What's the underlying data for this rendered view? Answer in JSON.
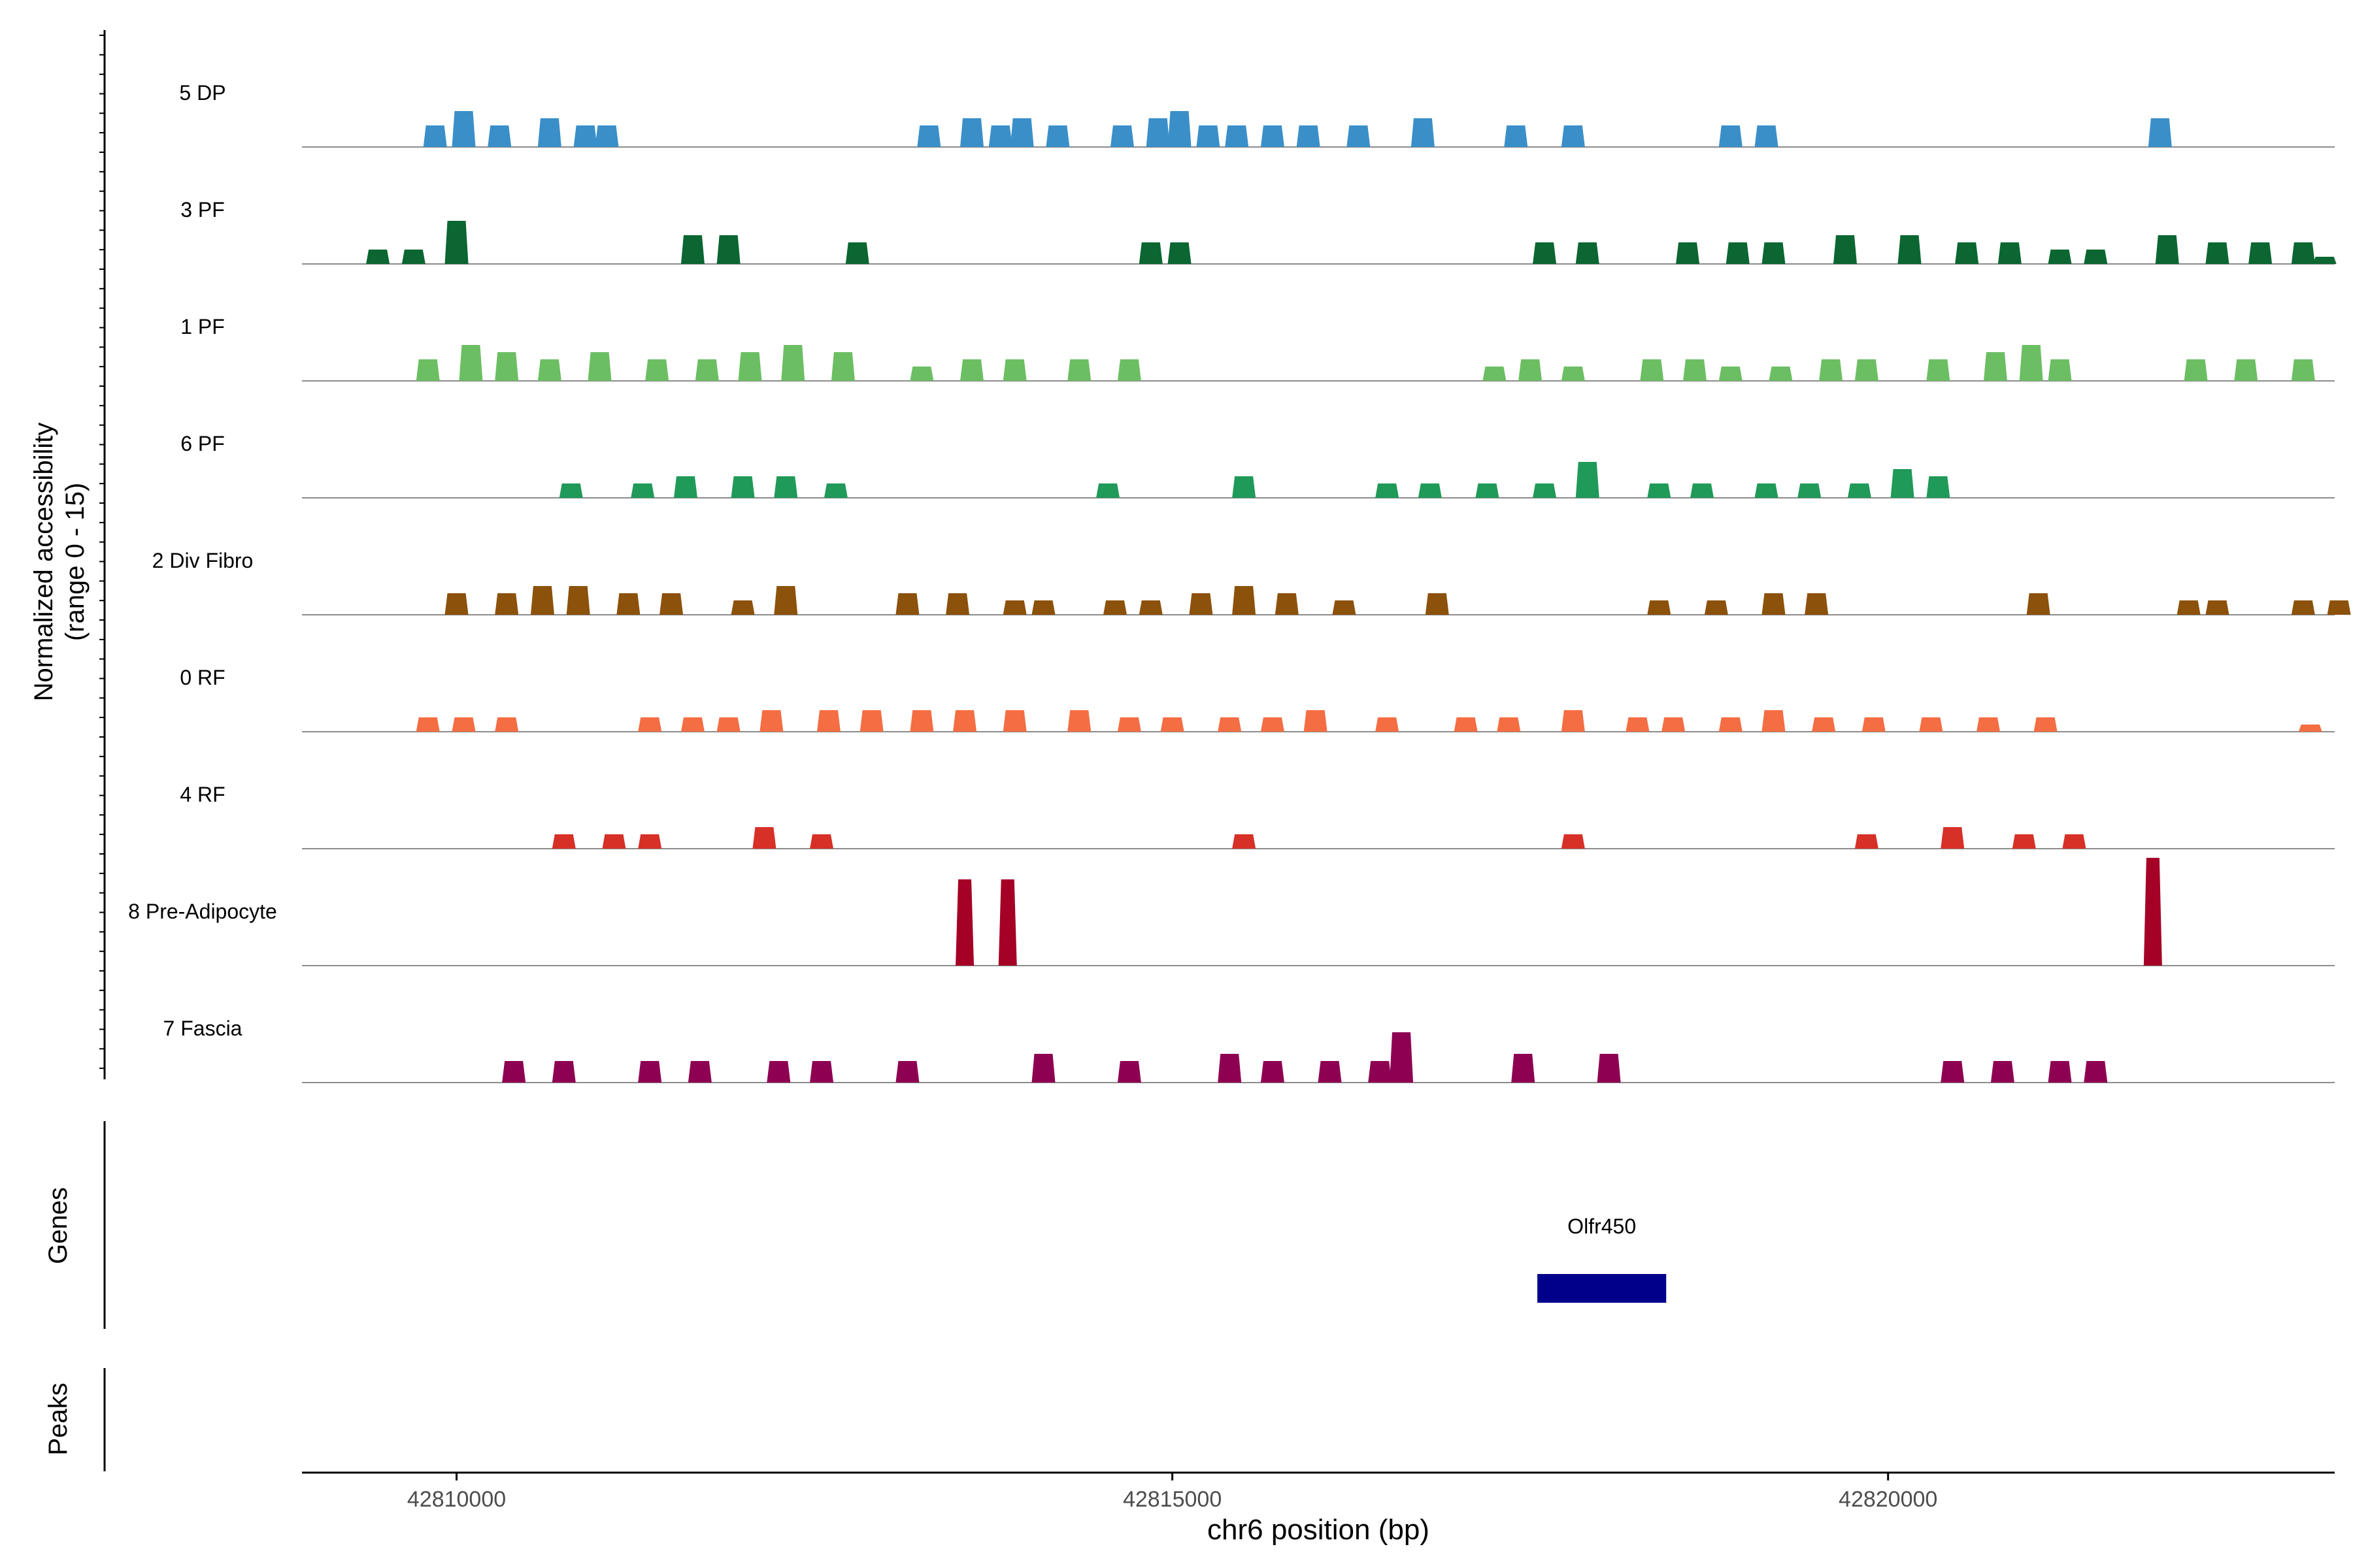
{
  "figure": {
    "yaxis_title_line1": "Normalized accessibility",
    "yaxis_title_line2": "(range 0 - 15)",
    "genes_label": "Genes",
    "peaks_label": "Peaks",
    "xlabel": "chr6 position (bp)"
  },
  "chart_data": {
    "type": "area",
    "xlabel": "chr6 position (bp)",
    "ylabel": "Normalized accessibility (range 0 - 15)",
    "xlim": [
      42808920,
      42823120
    ],
    "ylim": [
      0,
      15
    ],
    "xticks": [
      {
        "value": 42810000,
        "label": "42810000"
      },
      {
        "value": 42815000,
        "label": "42815000"
      },
      {
        "value": 42820000,
        "label": "42820000"
      }
    ],
    "series": [
      {
        "name": "5 DP",
        "color": "#3a8fc9",
        "peaks": [
          [
            42809850,
            3
          ],
          [
            42810050,
            5
          ],
          [
            42810300,
            3
          ],
          [
            42810650,
            4
          ],
          [
            42810900,
            3
          ],
          [
            42811050,
            3
          ],
          [
            42813300,
            3
          ],
          [
            42813600,
            4
          ],
          [
            42813800,
            3
          ],
          [
            42813950,
            4
          ],
          [
            42814200,
            3
          ],
          [
            42814650,
            3
          ],
          [
            42814900,
            4
          ],
          [
            42815050,
            5
          ],
          [
            42815250,
            3
          ],
          [
            42815450,
            3
          ],
          [
            42815700,
            3
          ],
          [
            42815950,
            3
          ],
          [
            42816300,
            3
          ],
          [
            42816750,
            4
          ],
          [
            42817400,
            3
          ],
          [
            42817800,
            3
          ],
          [
            42818900,
            3
          ],
          [
            42819150,
            3
          ],
          [
            42821900,
            4
          ]
        ]
      },
      {
        "name": "3 PF",
        "color": "#0b6631",
        "peaks": [
          [
            42809450,
            2
          ],
          [
            42809700,
            2
          ],
          [
            42810000,
            6
          ],
          [
            42811650,
            4
          ],
          [
            42811900,
            4
          ],
          [
            42812800,
            3
          ],
          [
            42814850,
            3
          ],
          [
            42815050,
            3
          ],
          [
            42817600,
            3
          ],
          [
            42817900,
            3
          ],
          [
            42818600,
            3
          ],
          [
            42818950,
            3
          ],
          [
            42819200,
            3
          ],
          [
            42819700,
            4
          ],
          [
            42820150,
            4
          ],
          [
            42820550,
            3
          ],
          [
            42820850,
            3
          ],
          [
            42821200,
            2
          ],
          [
            42821450,
            2
          ],
          [
            42821950,
            4
          ],
          [
            42822300,
            3
          ],
          [
            42822600,
            3
          ],
          [
            42822900,
            3
          ],
          [
            42823050,
            1
          ]
        ]
      },
      {
        "name": "1 PF",
        "color": "#6cbe63",
        "peaks": [
          [
            42809800,
            3
          ],
          [
            42810100,
            5
          ],
          [
            42810350,
            4
          ],
          [
            42810650,
            3
          ],
          [
            42811000,
            4
          ],
          [
            42811400,
            3
          ],
          [
            42811750,
            3
          ],
          [
            42812050,
            4
          ],
          [
            42812350,
            5
          ],
          [
            42812700,
            4
          ],
          [
            42813250,
            2
          ],
          [
            42813600,
            3
          ],
          [
            42813900,
            3
          ],
          [
            42814350,
            3
          ],
          [
            42814700,
            3
          ],
          [
            42817250,
            2
          ],
          [
            42817500,
            3
          ],
          [
            42817800,
            2
          ],
          [
            42818350,
            3
          ],
          [
            42818650,
            3
          ],
          [
            42818900,
            2
          ],
          [
            42819250,
            2
          ],
          [
            42819600,
            3
          ],
          [
            42819850,
            3
          ],
          [
            42820350,
            3
          ],
          [
            42820750,
            4
          ],
          [
            42821000,
            5
          ],
          [
            42821200,
            3
          ],
          [
            42822150,
            3
          ],
          [
            42822500,
            3
          ],
          [
            42822900,
            3
          ]
        ]
      },
      {
        "name": "6 PF",
        "color": "#1f9a58",
        "peaks": [
          [
            42810800,
            2
          ],
          [
            42811300,
            2
          ],
          [
            42811600,
            3
          ],
          [
            42812000,
            3
          ],
          [
            42812300,
            3
          ],
          [
            42812650,
            2
          ],
          [
            42814550,
            2
          ],
          [
            42815500,
            3
          ],
          [
            42816500,
            2
          ],
          [
            42816800,
            2
          ],
          [
            42817200,
            2
          ],
          [
            42817600,
            2
          ],
          [
            42817900,
            5
          ],
          [
            42818400,
            2
          ],
          [
            42818700,
            2
          ],
          [
            42819150,
            2
          ],
          [
            42819450,
            2
          ],
          [
            42819800,
            2
          ],
          [
            42820100,
            4
          ],
          [
            42820350,
            3
          ]
        ]
      },
      {
        "name": "2 Div Fibro",
        "color": "#8c510a",
        "peaks": [
          [
            42810000,
            3
          ],
          [
            42810350,
            3
          ],
          [
            42810600,
            4
          ],
          [
            42810850,
            4
          ],
          [
            42811200,
            3
          ],
          [
            42811500,
            3
          ],
          [
            42812000,
            2
          ],
          [
            42812300,
            4
          ],
          [
            42813150,
            3
          ],
          [
            42813500,
            3
          ],
          [
            42813900,
            2
          ],
          [
            42814100,
            2
          ],
          [
            42814600,
            2
          ],
          [
            42814850,
            2
          ],
          [
            42815200,
            3
          ],
          [
            42815500,
            4
          ],
          [
            42815800,
            3
          ],
          [
            42816200,
            2
          ],
          [
            42816850,
            3
          ],
          [
            42818400,
            2
          ],
          [
            42818800,
            2
          ],
          [
            42819200,
            3
          ],
          [
            42819500,
            3
          ],
          [
            42821050,
            3
          ],
          [
            42822100,
            2
          ],
          [
            42822300,
            2
          ],
          [
            42822900,
            2
          ],
          [
            42823150,
            2
          ]
        ]
      },
      {
        "name": "0 RF",
        "color": "#f46d43",
        "peaks": [
          [
            42809800,
            2
          ],
          [
            42810050,
            2
          ],
          [
            42810350,
            2
          ],
          [
            42811350,
            2
          ],
          [
            42811650,
            2
          ],
          [
            42811900,
            2
          ],
          [
            42812200,
            3
          ],
          [
            42812600,
            3
          ],
          [
            42812900,
            3
          ],
          [
            42813250,
            3
          ],
          [
            42813550,
            3
          ],
          [
            42813900,
            3
          ],
          [
            42814350,
            3
          ],
          [
            42814700,
            2
          ],
          [
            42815000,
            2
          ],
          [
            42815400,
            2
          ],
          [
            42815700,
            2
          ],
          [
            42816000,
            3
          ],
          [
            42816500,
            2
          ],
          [
            42817050,
            2
          ],
          [
            42817350,
            2
          ],
          [
            42817800,
            3
          ],
          [
            42818250,
            2
          ],
          [
            42818500,
            2
          ],
          [
            42818900,
            2
          ],
          [
            42819200,
            3
          ],
          [
            42819550,
            2
          ],
          [
            42819900,
            2
          ],
          [
            42820300,
            2
          ],
          [
            42820700,
            2
          ],
          [
            42821100,
            2
          ],
          [
            42822950,
            1
          ]
        ]
      },
      {
        "name": "4 RF",
        "color": "#d73027",
        "peaks": [
          [
            42810750,
            2
          ],
          [
            42811100,
            2
          ],
          [
            42811350,
            2
          ],
          [
            42812150,
            3
          ],
          [
            42812550,
            2
          ],
          [
            42815500,
            2
          ],
          [
            42817800,
            2
          ],
          [
            42819850,
            2
          ],
          [
            42820450,
            3
          ],
          [
            42820950,
            2
          ],
          [
            42821300,
            2
          ]
        ]
      },
      {
        "name": "8 Pre-Adipocyte",
        "color": "#a50026",
        "peaks": [
          [
            42813550,
            12
          ],
          [
            42813850,
            12
          ],
          [
            42821850,
            15
          ]
        ]
      },
      {
        "name": "7 Fascia",
        "color": "#8e0152",
        "peaks": [
          [
            42810400,
            3
          ],
          [
            42810750,
            3
          ],
          [
            42811350,
            3
          ],
          [
            42811700,
            3
          ],
          [
            42812250,
            3
          ],
          [
            42812550,
            3
          ],
          [
            42813150,
            3
          ],
          [
            42814100,
            4
          ],
          [
            42814700,
            3
          ],
          [
            42815400,
            4
          ],
          [
            42815700,
            3
          ],
          [
            42816100,
            3
          ],
          [
            42816450,
            3
          ],
          [
            42816600,
            7
          ],
          [
            42817450,
            4
          ],
          [
            42818050,
            4
          ],
          [
            42820450,
            3
          ],
          [
            42820800,
            3
          ],
          [
            42821200,
            3
          ],
          [
            42821450,
            3
          ]
        ]
      }
    ],
    "genes": [
      {
        "name": "Olfr450",
        "start": 42817550,
        "end": 42818450
      }
    ]
  }
}
